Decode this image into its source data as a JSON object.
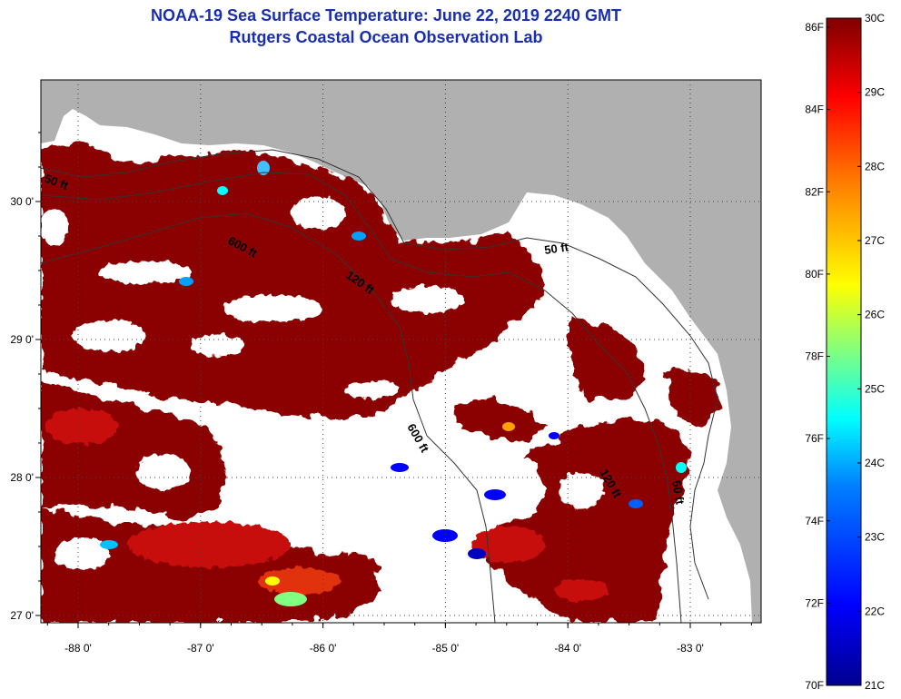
{
  "title": {
    "line1": "NOAA-19 Sea Surface Temperature:  June 22, 2019 2240 GMT",
    "line2": "Rutgers Coastal Ocean Observation Lab"
  },
  "map": {
    "x_ticks": [
      {
        "value": -88,
        "label": "-88 0'"
      },
      {
        "value": -87,
        "label": "-87 0'"
      },
      {
        "value": -86,
        "label": "-86 0'"
      },
      {
        "value": -85,
        "label": "-85 0'"
      },
      {
        "value": -84,
        "label": "-84 0'"
      },
      {
        "value": -83,
        "label": "-83 0'"
      }
    ],
    "y_ticks": [
      {
        "value": 30,
        "label": "30 0'"
      },
      {
        "value": 29,
        "label": "29 0'"
      },
      {
        "value": 28,
        "label": "28 0'"
      },
      {
        "value": 27,
        "label": "27 0'"
      }
    ],
    "contour_labels": [
      {
        "text": "50 ft",
        "name": "contour-label-50ft-west"
      },
      {
        "text": "600 ft",
        "name": "contour-label-600ft-north"
      },
      {
        "text": "120 ft",
        "name": "contour-label-120ft-north"
      },
      {
        "text": "50 ft",
        "name": "contour-label-50ft-bigbend"
      },
      {
        "text": "600 ft",
        "name": "contour-label-600ft-south"
      },
      {
        "text": "120 ft",
        "name": "contour-label-120ft-south"
      },
      {
        "text": "50 ft",
        "name": "contour-label-50ft-south"
      }
    ],
    "colors": {
      "land": "#b0b0b0",
      "cloud": "#ffffff",
      "sst_warm": "#8b0000",
      "sst_hot": "#c81010"
    }
  },
  "colorbar": {
    "fahrenheit_labels": [
      "86F",
      "84F",
      "82F",
      "80F",
      "78F",
      "76F",
      "74F",
      "72F",
      "70F"
    ],
    "celsius_labels": [
      "30C",
      "29C",
      "28C",
      "27C",
      "26C",
      "25C",
      "24C",
      "23C",
      "22C",
      "21C"
    ],
    "colors": [
      "#00008f",
      "#0000ff",
      "#0080ff",
      "#00ffff",
      "#80ff80",
      "#ffff00",
      "#ff8000",
      "#ff0000",
      "#800000"
    ]
  }
}
